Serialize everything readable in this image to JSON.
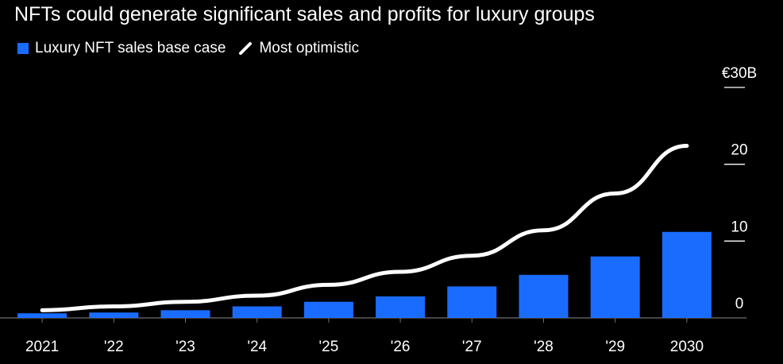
{
  "chart_data": {
    "type": "bar",
    "title": "NFTs could generate significant sales and profits for luxury groups",
    "categories": [
      "2021",
      "'22",
      "'23",
      "'24",
      "'25",
      "'26",
      "'27",
      "'28",
      "'29",
      "2030"
    ],
    "series": [
      {
        "name": "Luxury NFT sales base case",
        "type": "bar",
        "color": "#1a6cff",
        "values": [
          0.6,
          0.7,
          1.0,
          1.5,
          2.1,
          2.8,
          4.1,
          5.6,
          8.0,
          11.2
        ]
      },
      {
        "name": "Most optimistic",
        "type": "line",
        "color": "#ffffff",
        "values": [
          1.0,
          1.5,
          2.1,
          2.9,
          4.3,
          6.0,
          8.1,
          11.4,
          16.2,
          22.4
        ]
      }
    ],
    "ylim": [
      0,
      30
    ],
    "yticks": [
      {
        "value": 0,
        "label": "0"
      },
      {
        "value": 10,
        "label": "10"
      },
      {
        "value": 20,
        "label": "20"
      },
      {
        "value": 30,
        "label": "€30B"
      }
    ],
    "xlabel": "",
    "ylabel": "",
    "legend_position": "top-left"
  }
}
